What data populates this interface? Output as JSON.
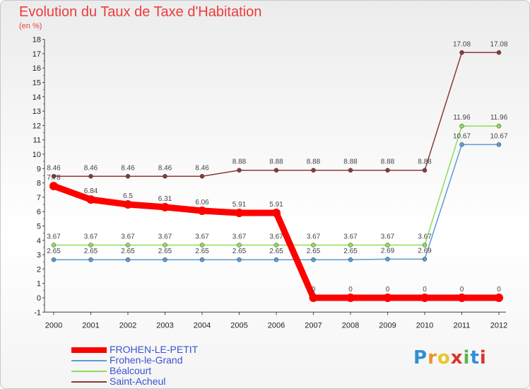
{
  "title": "Evolution du Taux de Taxe d'Habitation",
  "subtitle": "(en %)",
  "logo": "Proxiti",
  "chart_data": {
    "type": "line",
    "title": "Evolution du Taux de Taxe d'Habitation",
    "ylabel": "(en %)",
    "xlabel": "",
    "x": [
      "2000",
      "2001",
      "2002",
      "2003",
      "2004",
      "2005",
      "2006",
      "2007",
      "2008",
      "2009",
      "2010",
      "2011",
      "2012"
    ],
    "ylim": [
      -1,
      18
    ],
    "yticks": [
      -1,
      0,
      1,
      2,
      3,
      4,
      5,
      6,
      7,
      8,
      9,
      10,
      11,
      12,
      13,
      14,
      15,
      16,
      17,
      18
    ],
    "grid": false,
    "legend_position": "bottom-left",
    "series": [
      {
        "name": "FROHEN-LE-PETIT",
        "color": "#ff0000",
        "values": [
          7.78,
          6.84,
          6.5,
          6.31,
          6.06,
          5.91,
          5.91,
          0,
          0,
          0,
          0,
          0,
          0
        ]
      },
      {
        "name": "Frohen-le-Grand",
        "color": "#5b9bd5",
        "values": [
          2.65,
          2.65,
          2.65,
          2.65,
          2.65,
          2.65,
          2.65,
          2.65,
          2.65,
          2.69,
          2.69,
          10.67,
          10.67
        ]
      },
      {
        "name": "Béalcourt",
        "color": "#8fdc5a",
        "values": [
          3.67,
          3.67,
          3.67,
          3.67,
          3.67,
          3.67,
          3.67,
          3.67,
          3.67,
          3.67,
          3.67,
          11.96,
          11.96
        ]
      },
      {
        "name": "Saint-Acheul",
        "color": "#8b3a3a",
        "values": [
          8.46,
          8.46,
          8.46,
          8.46,
          8.46,
          8.88,
          8.88,
          8.88,
          8.88,
          8.88,
          8.88,
          17.08,
          17.08
        ]
      }
    ],
    "data_labels": {
      "FROHEN-LE-PETIT": [
        "7.78",
        "6.84",
        "6.5",
        "6.31",
        "6.06",
        "5.91",
        "5.91",
        "0",
        "0",
        "0",
        "0",
        "0",
        "0"
      ],
      "Frohen-le-Grand": [
        "2.65",
        "2.65",
        "2.65",
        "2.65",
        "2.65",
        "2.65",
        "2.65",
        "2.65",
        "2.65",
        "2.69",
        "2.69",
        "10.67",
        "10.67"
      ],
      "Béalcourt": [
        "3.67",
        "3.67",
        "3.67",
        "3.67",
        "3.67",
        "3.67",
        "3.67",
        "3.67",
        "3.67",
        "3.67",
        "3.67",
        "11.96",
        "11.96"
      ],
      "Saint-Acheul": [
        "8.46",
        "8.46",
        "8.46",
        "8.46",
        "8.46",
        "8.88",
        "8.88",
        "8.88",
        "8.88",
        "8.88",
        "8.88",
        "17.08",
        "17.08"
      ]
    }
  }
}
